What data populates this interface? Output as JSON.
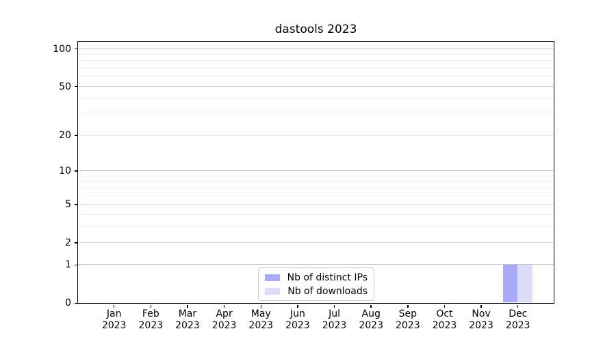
{
  "chart_data": {
    "type": "bar",
    "title": "dastools 2023",
    "categories": [
      "Jan",
      "Feb",
      "Mar",
      "Apr",
      "May",
      "Jun",
      "Jul",
      "Aug",
      "Sep",
      "Oct",
      "Nov",
      "Dec"
    ],
    "x_tick_second_line": "2023",
    "series": [
      {
        "name": "Nb of distinct IPs",
        "color": "#aaaaf8",
        "values": [
          0,
          0,
          0,
          0,
          0,
          0,
          0,
          0,
          0,
          0,
          0,
          1
        ]
      },
      {
        "name": "Nb of downloads",
        "color": "#dcdcf8",
        "values": [
          0,
          0,
          0,
          0,
          0,
          0,
          0,
          0,
          0,
          0,
          0,
          1
        ]
      }
    ],
    "y_scale": "log(1+y)",
    "y_ticks": [
      0,
      1,
      2,
      5,
      10,
      20,
      50,
      100
    ],
    "y_minor_ticks": [
      3,
      4,
      6,
      7,
      8,
      9,
      30,
      40,
      60,
      70,
      80,
      90
    ],
    "ylim": [
      0,
      116
    ],
    "grid": "horizontal",
    "legend_position": "lower center",
    "colors": {
      "decade_grid": "#c3c3c3",
      "major_grid": "#d8d8d8",
      "minor_grid": "#ededed",
      "axis": "#000000",
      "background": "#ffffff"
    }
  }
}
